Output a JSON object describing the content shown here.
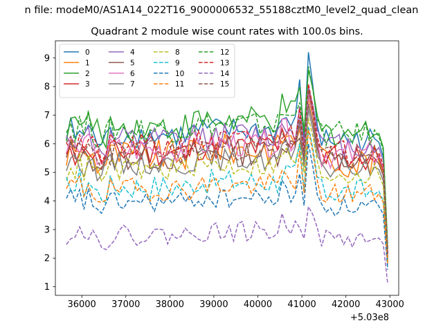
{
  "figure": {
    "suptitle": "n file: modeM0/AS1A14_022T16_9000006532_55188cztM0_level2_quad_clean",
    "title": "Quadrant 2 module wise count rates with 100.0s bins."
  },
  "chart_data": {
    "type": "line",
    "title": "Quadrant 2 module wise count rates with 100.0s bins.",
    "xlabel": "",
    "ylabel": "",
    "x_offset_label": "+5.03e8",
    "xlim": [
      35400,
      43200
    ],
    "ylim": [
      0.7,
      9.6
    ],
    "xticks": [
      36000,
      37000,
      38000,
      39000,
      40000,
      41000,
      42000,
      43000
    ],
    "xtick_labels": [
      "36000",
      "37000",
      "38000",
      "39000",
      "40000",
      "41000",
      "42000",
      "43000"
    ],
    "yticks": [
      1,
      2,
      3,
      4,
      5,
      6,
      7,
      8,
      9
    ],
    "ytick_labels": [
      "1",
      "2",
      "3",
      "4",
      "5",
      "6",
      "7",
      "8",
      "9"
    ],
    "x_start": 35650,
    "x_step": 100,
    "n_points": 74,
    "legend_position": "top-left",
    "legend_columns": 4,
    "series": [
      {
        "name": "0",
        "color": "#1f77b4",
        "dash": "solid",
        "base": 6.3,
        "amp": 0.28,
        "seed": 1,
        "spike": 9.2,
        "end": 2.0
      },
      {
        "name": "1",
        "color": "#ff7f0e",
        "dash": "solid",
        "base": 5.6,
        "amp": 0.35,
        "seed": 2,
        "spike": 7.6,
        "end": 1.9
      },
      {
        "name": "2",
        "color": "#2ca02c",
        "dash": "solid",
        "base": 6.6,
        "amp": 0.32,
        "seed": 3,
        "spike": 8.6,
        "end": 2.4
      },
      {
        "name": "3",
        "color": "#d62728",
        "dash": "solid",
        "base": 5.7,
        "amp": 0.3,
        "seed": 4,
        "spike": 7.9,
        "end": 2.1
      },
      {
        "name": "4",
        "color": "#9467bd",
        "dash": "solid",
        "base": 6.1,
        "amp": 0.3,
        "seed": 5,
        "spike": 8.0,
        "end": 2.2
      },
      {
        "name": "5",
        "color": "#8c564b",
        "dash": "solid",
        "base": 5.5,
        "amp": 0.28,
        "seed": 6,
        "spike": 7.4,
        "end": 2.0
      },
      {
        "name": "6",
        "color": "#e377c2",
        "dash": "solid",
        "base": 5.8,
        "amp": 0.3,
        "seed": 7,
        "spike": 7.7,
        "end": 2.1
      },
      {
        "name": "7",
        "color": "#7f7f7f",
        "dash": "solid",
        "base": 5.3,
        "amp": 0.25,
        "seed": 8,
        "spike": 7.2,
        "end": 1.9
      },
      {
        "name": "8",
        "color": "#bcbd22",
        "dash": "dashed",
        "base": 5.1,
        "amp": 0.25,
        "seed": 9,
        "spike": 6.9,
        "end": 1.9
      },
      {
        "name": "9",
        "color": "#17becf",
        "dash": "dashed",
        "base": 4.5,
        "amp": 0.28,
        "seed": 10,
        "spike": 6.6,
        "end": 1.7
      },
      {
        "name": "10",
        "color": "#1f77b4",
        "dash": "dashed",
        "base": 3.95,
        "amp": 0.22,
        "seed": 11,
        "spike": 6.0,
        "end": 1.6
      },
      {
        "name": "11",
        "color": "#ff7f0e",
        "dash": "dashed",
        "base": 4.4,
        "amp": 0.25,
        "seed": 12,
        "spike": 6.5,
        "end": 1.8
      },
      {
        "name": "12",
        "color": "#2ca02c",
        "dash": "dashed",
        "base": 6.5,
        "amp": 0.28,
        "seed": 13,
        "spike": 8.7,
        "end": 2.3
      },
      {
        "name": "13",
        "color": "#d62728",
        "dash": "dashed",
        "base": 5.9,
        "amp": 0.28,
        "seed": 14,
        "spike": 8.1,
        "end": 2.2
      },
      {
        "name": "14",
        "color": "#9467bd",
        "dash": "dashed",
        "base": 2.8,
        "amp": 0.22,
        "seed": 15,
        "spike": 3.8,
        "end": 1.1
      },
      {
        "name": "15",
        "color": "#8c564b",
        "dash": "dashed",
        "base": 5.7,
        "amp": 0.28,
        "seed": 16,
        "spike": 7.9,
        "end": 2.1
      }
    ]
  }
}
